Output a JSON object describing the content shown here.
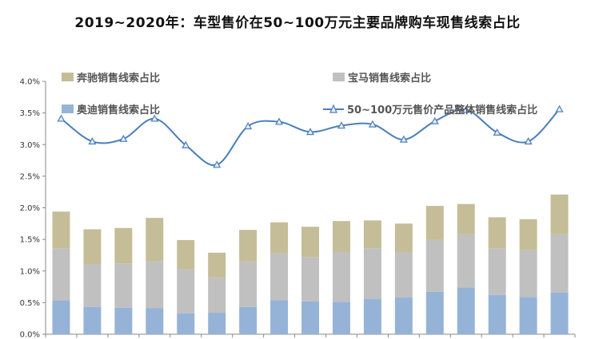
{
  "title": "2019~2020年：车型售价在50~100万元主要品牌购车现售线索占比",
  "chart_data": {
    "type": "bar",
    "stacked": true,
    "title": "2019~2020年：车型售价在50~100万元主要品牌购车现售线索占比",
    "categories": [
      "",
      "",
      "",
      "",
      "",
      "",
      "",
      "",
      "",
      "",
      "",
      "",
      "",
      "",
      "",
      "",
      ""
    ],
    "ylim": [
      0,
      4.0
    ],
    "yticks": [
      "0.0%",
      "0.5%",
      "1.0%",
      "1.5%",
      "2.0%",
      "2.5%",
      "3.0%",
      "3.5%",
      "4.0%"
    ],
    "grid": false,
    "legend_position": "top",
    "colors": {
      "audi": "#95b3d7",
      "bmw": "#c0c0c0",
      "benz": "#c4bd97",
      "line": "#4a7ebb"
    },
    "series": [
      {
        "name": "奥迪销售线索占比",
        "kind": "bar",
        "values": [
          0.53,
          0.43,
          0.42,
          0.41,
          0.33,
          0.34,
          0.43,
          0.54,
          0.52,
          0.51,
          0.56,
          0.58,
          0.67,
          0.74,
          0.62,
          0.59,
          0.66
        ]
      },
      {
        "name": "宝马销售线索占比",
        "kind": "bar",
        "values": [
          0.83,
          0.68,
          0.7,
          0.74,
          0.7,
          0.56,
          0.72,
          0.74,
          0.7,
          0.79,
          0.8,
          0.72,
          0.82,
          0.84,
          0.74,
          0.74,
          0.92
        ]
      },
      {
        "name": "奔驰销售线索占比",
        "kind": "bar",
        "values": [
          0.58,
          0.55,
          0.56,
          0.69,
          0.46,
          0.39,
          0.5,
          0.49,
          0.48,
          0.49,
          0.44,
          0.45,
          0.54,
          0.48,
          0.49,
          0.49,
          0.63
        ]
      },
      {
        "name": "50~100万元售价产品整体销售线索占比",
        "kind": "line",
        "values": [
          3.41,
          3.05,
          3.09,
          3.41,
          2.99,
          2.68,
          3.29,
          3.36,
          3.2,
          3.3,
          3.32,
          3.08,
          3.37,
          3.55,
          3.19,
          3.05,
          3.56
        ]
      }
    ]
  }
}
